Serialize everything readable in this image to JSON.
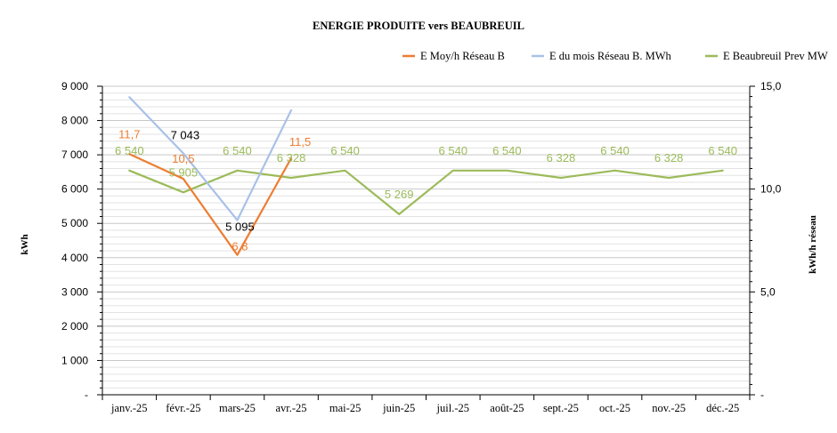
{
  "chart_data": {
    "type": "line",
    "title": "ENERGIE PRODUITE vers BEAUBREUIL",
    "categories": [
      "janv.-25",
      "févr.-25",
      "mars-25",
      "avr.-25",
      "mai-25",
      "juin-25",
      "juil.-25",
      "août-25",
      "sept.-25",
      "oct.-25",
      "nov.-25",
      "déc.-25"
    ],
    "ylabel": "kWh",
    "y2label": "kWh/h réseau",
    "ylim": [
      0,
      9000
    ],
    "y2lim": [
      0,
      15
    ],
    "yticks": [
      "-",
      "1 000",
      "2 000",
      "3 000",
      "4 000",
      "5 000",
      "6 000",
      "7 000",
      "8 000",
      "9 000"
    ],
    "y2ticks": [
      "-",
      "5,0",
      "10,0",
      "15,0"
    ],
    "grid": true,
    "legend_position": "top-right",
    "series": [
      {
        "name": "E Moy/h Réseau B",
        "axis": "right",
        "color": "#ed7d31",
        "values": [
          11.7,
          10.5,
          6.8,
          11.5,
          null,
          null,
          null,
          null,
          null,
          null,
          null,
          null
        ],
        "labels": [
          "11,7",
          "10,5",
          "6,8",
          "11,5",
          "",
          "",
          "",
          "",
          "",
          "",
          "",
          ""
        ]
      },
      {
        "name": "E du mois  Réseau B. MWh",
        "axis": "left",
        "color": "#a9c1e8",
        "values": [
          8680,
          7043,
          5095,
          8300,
          null,
          null,
          null,
          null,
          null,
          null,
          null,
          null
        ],
        "labels": [
          "",
          "7 043",
          "5 095",
          "",
          "",
          "",
          "",
          "",
          "",
          "",
          "",
          ""
        ]
      },
      {
        "name": "E Beaubreuil Prev MW",
        "axis": "left",
        "color": "#9bbb59",
        "values": [
          6540,
          5905,
          6540,
          6328,
          6540,
          5269,
          6540,
          6540,
          6328,
          6540,
          6328,
          6540
        ],
        "labels": [
          "6 540",
          "5 905",
          "6 540",
          "6 328",
          "6 540",
          "5 269",
          "6 540",
          "6 540",
          "6 328",
          "6 540",
          "6 328",
          "6 540"
        ]
      }
    ]
  }
}
